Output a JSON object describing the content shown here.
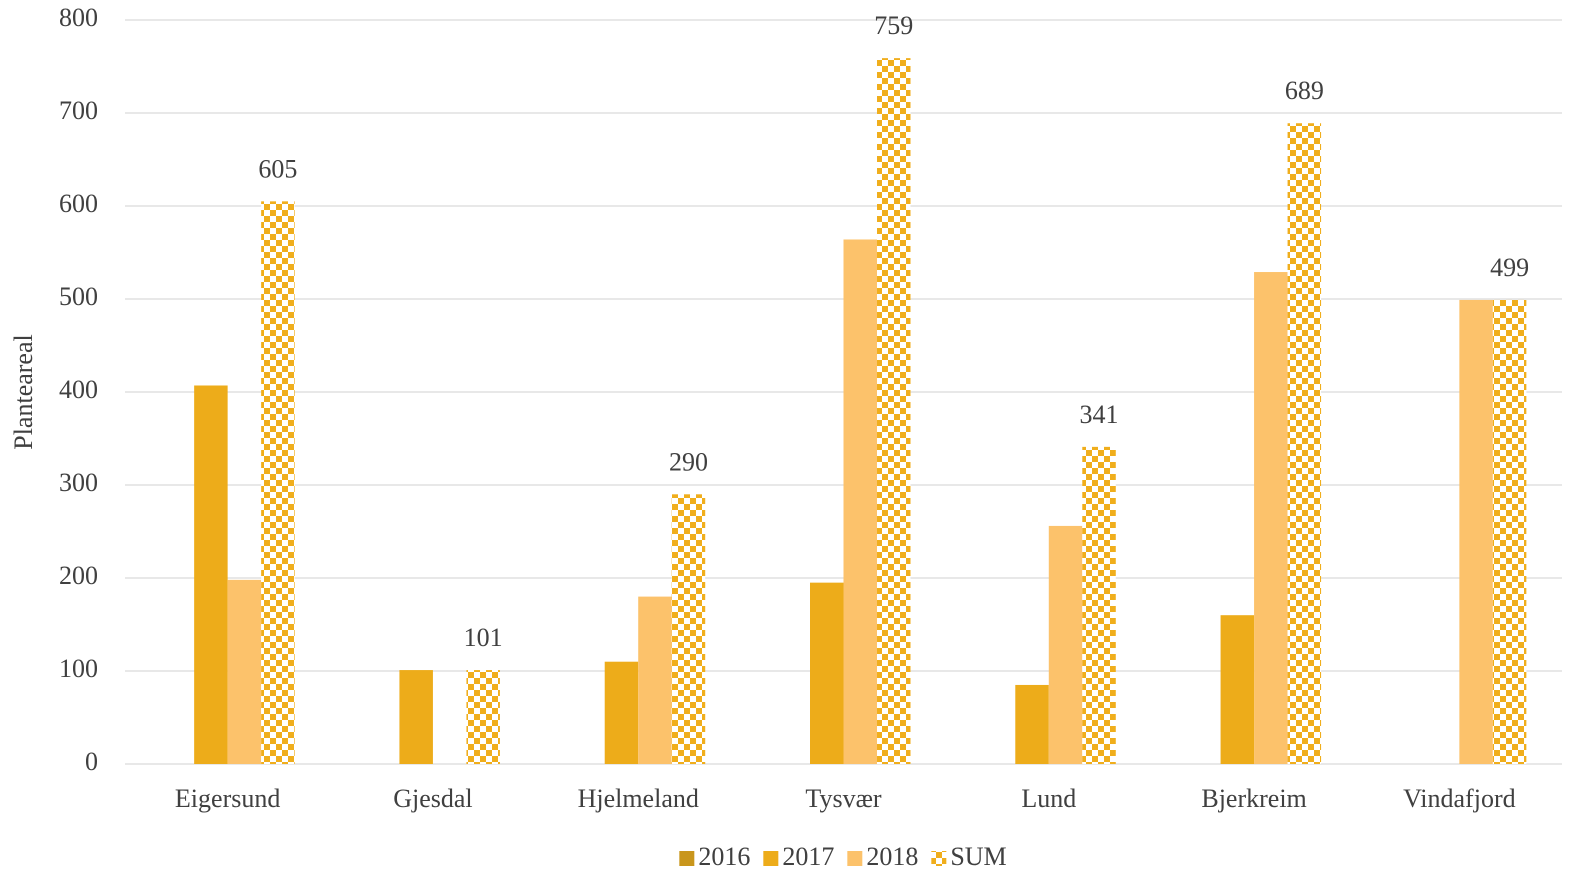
{
  "chart_data": {
    "type": "bar",
    "y_label": "Planteareal",
    "categories": [
      "Eigersund",
      "Gjesdal",
      "Hjelmeland",
      "Tysvær",
      "Lund",
      "Bjerkreim",
      "Vindafjord"
    ],
    "series": [
      {
        "name": "2016",
        "color": "#c9961c",
        "pattern": "solid",
        "values": [
          null,
          null,
          null,
          null,
          null,
          null,
          null
        ]
      },
      {
        "name": "2017",
        "color": "#edac1a",
        "pattern": "solid",
        "values": [
          407,
          101,
          110,
          195,
          85,
          160,
          null
        ]
      },
      {
        "name": "2018",
        "color": "#fcc26b",
        "pattern": "solid",
        "values": [
          198,
          null,
          180,
          564,
          256,
          529,
          499
        ]
      },
      {
        "name": "SUM",
        "color": "#f0ae1c",
        "pattern": "checker",
        "data_labels": true,
        "values": [
          605,
          101,
          290,
          759,
          341,
          689,
          499
        ]
      }
    ],
    "ylim": [
      0,
      800
    ],
    "yticks": [
      0,
      100,
      200,
      300,
      400,
      500,
      600,
      700,
      800
    ],
    "grid": true,
    "legend": "bottom"
  }
}
